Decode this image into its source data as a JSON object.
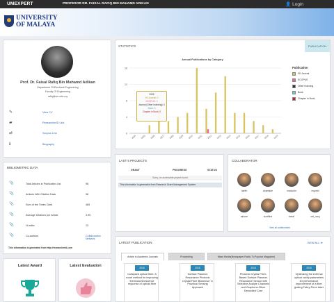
{
  "topbar": {
    "brand": "UMEXPERT",
    "profile_name": "PROFESOR DR. FAISAL RAFIQ BIN MAHAMD ADIKAN",
    "login": "Login"
  },
  "header": {
    "logo_line1": "UNIVERSITY",
    "logo_line2": "OF MALAYA"
  },
  "profile": {
    "name": "Prof. Dr. Faisal Rafiq Bin Mahamd Adikan",
    "department": "Department Of Electrical Engineering",
    "faculty": "Faculty Of Engineering",
    "email": "rafiq@um.edu.my",
    "links": [
      {
        "icon": "edit-icon",
        "glyph": "✎",
        "label": "View CV"
      },
      {
        "icon": "researcherid-icon",
        "glyph": "▰",
        "label": "ResearcherID Link"
      },
      {
        "icon": "scopus-icon",
        "glyph": "⇄",
        "label": "Scopus Link"
      },
      {
        "icon": "info-icon",
        "glyph": "ℹ",
        "label": "Biography"
      }
    ]
  },
  "statistics": {
    "title": "STATISTICS",
    "tab": "PUBLICATION",
    "tooltip": {
      "year": "2005",
      "lines": [
        "ISI Journal: 0",
        "SCOPUS: 0",
        "Journal (Other Indexing): 0",
        "Book: 0",
        "Chapter in Book: 0"
      ]
    }
  },
  "chart_data": {
    "type": "bar",
    "title": "Annual Publications by Category",
    "categories": [
      "2004",
      "2005",
      "2006",
      "2007",
      "2008",
      "2009",
      "2010",
      "2011",
      "2012",
      "2013",
      "2014",
      "2015",
      "2016",
      "2017",
      "2018",
      "2019"
    ],
    "ylim": [
      0,
      16
    ],
    "yticks": [
      0,
      4,
      8,
      12,
      16
    ],
    "legend_title": "Publication",
    "legend_position": "right",
    "series": [
      {
        "name": "ISI Journal",
        "color": "#d8c463",
        "values": [
          0,
          0,
          2,
          6,
          3,
          4,
          5,
          16,
          6,
          10,
          14,
          5,
          5,
          3,
          2,
          1
        ]
      },
      {
        "name": "SCOPUS",
        "color": "#e66a8f",
        "values": [
          0,
          0,
          0,
          0,
          0,
          0,
          0,
          0,
          1,
          0,
          0,
          0,
          0,
          0,
          0,
          0
        ]
      },
      {
        "name": "Other Indexing",
        "color": "#333333",
        "values": [
          0,
          0,
          0,
          0,
          0,
          0,
          0,
          0,
          0,
          0,
          0,
          0,
          0,
          0,
          0,
          0
        ]
      },
      {
        "name": "Book",
        "color": "#6ec7d6",
        "values": [
          0,
          0,
          0,
          0,
          0,
          0,
          0,
          0,
          0,
          0,
          0,
          0,
          0,
          0,
          0,
          0
        ]
      },
      {
        "name": "Chapter in Book",
        "color": "#b0243a",
        "values": [
          0,
          0,
          0,
          0,
          0,
          0,
          0,
          0,
          0,
          0,
          0,
          0,
          0,
          0,
          0,
          0
        ]
      }
    ]
  },
  "projects": {
    "title": "LAST 5 PROJECTS",
    "columns": [
      "GRANT",
      "PROGRESS",
      "STATUS"
    ],
    "empty": "Sorry, no accessible project found",
    "info": "This information is generated from Research Grant Management System"
  },
  "collaborators": {
    "title": "COLLABORATOR",
    "people": [
      "harith",
      "ahamade",
      "maizudin",
      "mypeid",
      "ainoan",
      "nizaftine",
      "faizal",
      "mit_ucrg"
    ],
    "view_all": "View all collaborators"
  },
  "bibliometric": {
    "title": "BIBLIOMETRIC DATA",
    "rows": [
      {
        "label": "Total Articles in Publication List",
        "value": "98"
      },
      {
        "label": "Articles With Citation Data",
        "value": "98"
      },
      {
        "label": "Sum of the Times Cited",
        "value": "465"
      },
      {
        "label": "Average Citations per Article",
        "value": "4.95"
      },
      {
        "label": "H-index",
        "value": "12"
      },
      {
        "label": "Co-authors",
        "value": "Collaboration Network"
      }
    ],
    "note": "This information is generated from http://researcherid.com"
  },
  "awards": {
    "award_title": "Latest Award",
    "evaluation_title": "Latest Evaluation"
  },
  "latest": {
    "title": "LATEST PUBLICATION",
    "view_all": "VIEW ALL",
    "tabs": [
      "Article in Academic Journals",
      "Proceeding",
      "Mass Media(Newspaper,Radio,Tv,Popular Magazine)"
    ],
    "cards": [
      {
        "year": "2015",
        "title": "Collapsed optical fiber: A novel method for improving thermoluminescence response of optical fiber"
      },
      {
        "year": "2015",
        "title": "Surface Plasmon Resonance Photonic Crystal Fiber Biosensor: A Practical Sensing Approach"
      },
      {
        "year": "2015",
        "title": "Photonic Crystal Fiber-Based Surface Plasmon Resonance Sensor with Selective Analyte Channels and Graphene-Silver Deposited Core"
      },
      {
        "year": "2015",
        "title": "Optimizing the external optical cavity parameters for performance improvement of a fiber grating Fabry-Perot laser"
      }
    ]
  }
}
